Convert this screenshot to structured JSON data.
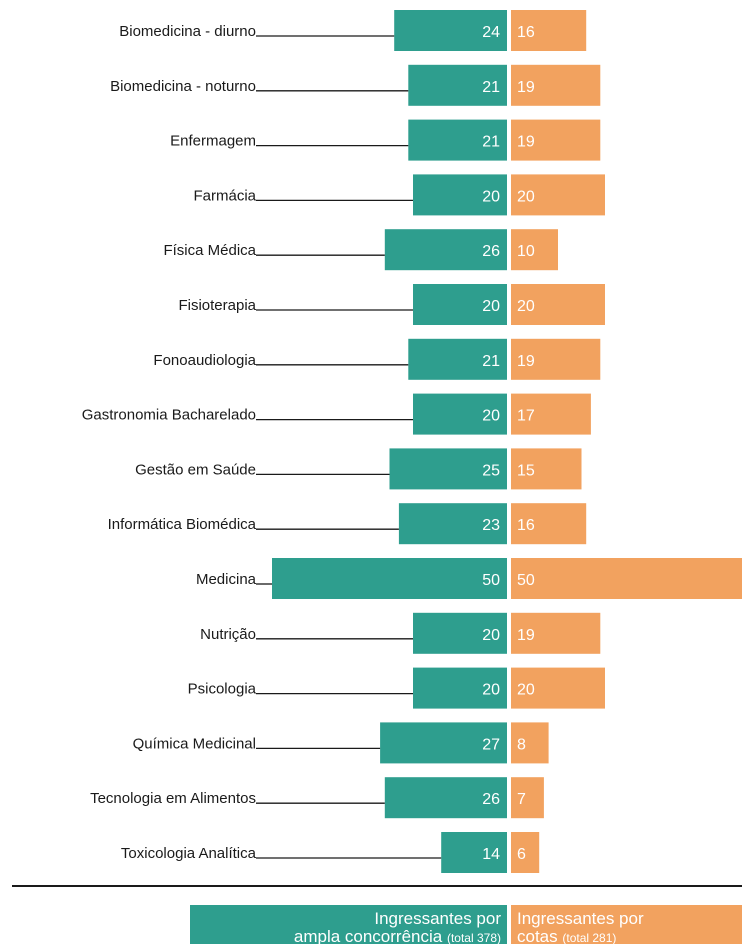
{
  "chart_data": {
    "type": "bar",
    "orientation": "horizontal-diverging",
    "categories": [
      "Biomedicina - diurno",
      "Biomedicina - noturno",
      "Enfermagem",
      "Farmácia",
      "Física Médica",
      "Fisioterapia",
      "Fonoaudiologia",
      "Gastronomia Bacharelado",
      "Gestão em Saúde",
      "Informática Biomédica",
      "Medicina",
      "Nutrição",
      "Psicologia",
      "Química Medicinal",
      "Tecnologia em Alimentos",
      "Toxicologia Analítica"
    ],
    "series": [
      {
        "name": "Ingressantes por ampla concorrência (total 378)",
        "color": "#2e9e8e",
        "values": [
          24,
          21,
          21,
          20,
          26,
          20,
          21,
          20,
          25,
          23,
          50,
          20,
          20,
          27,
          26,
          14
        ]
      },
      {
        "name": "Ingressantes por cotas (total 281)",
        "color": "#f2a25f",
        "values": [
          16,
          19,
          19,
          20,
          10,
          20,
          19,
          17,
          15,
          16,
          50,
          19,
          20,
          8,
          7,
          6
        ]
      }
    ],
    "legend_placement": "bottom",
    "grid": false
  },
  "legend": {
    "ampla": {
      "line1": "Ingressantes por",
      "line2": "ampla concorrência",
      "total": "(total 378)"
    },
    "cotas": {
      "line1": "Ingressantes por",
      "line2": "cotas",
      "total": "(total 281)"
    }
  }
}
